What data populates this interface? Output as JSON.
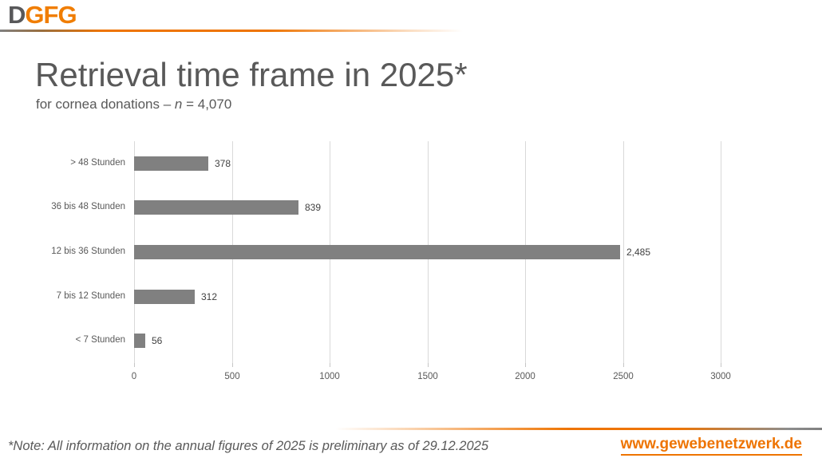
{
  "logo": {
    "part1": "D",
    "part2": "GFG"
  },
  "header": {
    "title": "Retrieval time frame in 2025*",
    "subtitle_prefix": "for cornea donations – ",
    "subtitle_var": "n",
    "subtitle_suffix": " = 4,070"
  },
  "chart_data": {
    "type": "bar",
    "orientation": "horizontal",
    "categories": [
      "> 48 Stunden",
      "36 bis 48 Stunden",
      "12 bis 36 Stunden",
      "7 bis 12 Stunden",
      "< 7 Stunden"
    ],
    "values": [
      378,
      839,
      2485,
      312,
      56
    ],
    "value_labels": [
      "378",
      "839",
      "2,485",
      "312",
      "56"
    ],
    "title": "",
    "xlabel": "",
    "ylabel": "",
    "xlim": [
      0,
      3000
    ],
    "xticks": [
      0,
      500,
      1000,
      1500,
      2000,
      2500,
      3000
    ],
    "grid": true,
    "legend": "none",
    "bar_color": "#808080"
  },
  "footer": {
    "note": "*Note: All information on the annual figures of 2025 is preliminary as of 29.12.2025",
    "website": "www.gewebenetzwerk.de"
  },
  "colors": {
    "brand_orange": "#ee7402",
    "logo_gray": "#58585a",
    "text_gray": "#595959",
    "bar_gray": "#808080",
    "gridline_gray": "#d9d9d9"
  }
}
